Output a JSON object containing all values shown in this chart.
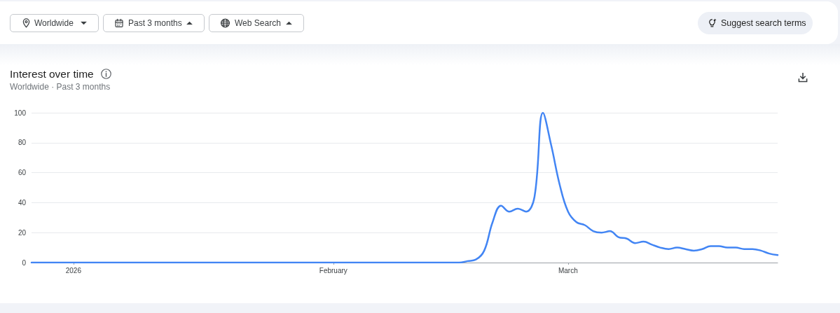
{
  "chart_data": {
    "type": "line",
    "title": "Interest over time",
    "subtitle": "Worldwide · Past 3 months",
    "annotations": [
      "Worldwide",
      "Past 3 months",
      "Web Search",
      "Suggest search terms"
    ],
    "x": [
      "2025-12-27",
      "2025-12-28",
      "2025-12-29",
      "2025-12-30",
      "2025-12-31",
      "2026-01-01",
      "2026-01-02",
      "2026-01-03",
      "2026-01-04",
      "2026-01-05",
      "2026-01-06",
      "2026-01-07",
      "2026-01-08",
      "2026-01-09",
      "2026-01-10",
      "2026-01-11",
      "2026-01-12",
      "2026-01-13",
      "2026-01-14",
      "2026-01-15",
      "2026-01-16",
      "2026-01-17",
      "2026-01-18",
      "2026-01-19",
      "2026-01-20",
      "2026-01-21",
      "2026-01-22",
      "2026-01-23",
      "2026-01-24",
      "2026-01-25",
      "2026-01-26",
      "2026-01-27",
      "2026-01-28",
      "2026-01-29",
      "2026-01-30",
      "2026-01-31",
      "2026-02-01",
      "2026-02-02",
      "2026-02-03",
      "2026-02-04",
      "2026-02-05",
      "2026-02-06",
      "2026-02-07",
      "2026-02-08",
      "2026-02-09",
      "2026-02-10",
      "2026-02-11",
      "2026-02-12",
      "2026-02-13",
      "2026-02-14",
      "2026-02-15",
      "2026-02-16",
      "2026-02-17",
      "2026-02-18",
      "2026-02-19",
      "2026-02-20",
      "2026-02-21",
      "2026-02-22",
      "2026-02-23",
      "2026-02-24",
      "2026-02-25",
      "2026-02-26",
      "2026-02-27",
      "2026-02-28",
      "2026-03-01",
      "2026-03-02",
      "2026-03-03",
      "2026-03-04",
      "2026-03-05",
      "2026-03-06",
      "2026-03-07",
      "2026-03-08",
      "2026-03-09",
      "2026-03-10",
      "2026-03-11",
      "2026-03-12",
      "2026-03-13",
      "2026-03-14",
      "2026-03-15",
      "2026-03-16",
      "2026-03-17",
      "2026-03-18",
      "2026-03-19",
      "2026-03-20",
      "2026-03-21",
      "2026-03-22",
      "2026-03-23",
      "2026-03-24",
      "2026-03-25",
      "2026-03-26"
    ],
    "series": [
      {
        "color": "#4285f4",
        "values": [
          0,
          0,
          0,
          0,
          0,
          0,
          0,
          0,
          0,
          0,
          0,
          0,
          0,
          0,
          0,
          0,
          0,
          0,
          0,
          0,
          0,
          0,
          0,
          0,
          0,
          0,
          0,
          0,
          0,
          0,
          0,
          0,
          0,
          0,
          0,
          0,
          0,
          0,
          0,
          0,
          0,
          0,
          0,
          0,
          0,
          0,
          0,
          0,
          0,
          0,
          0,
          0,
          1,
          2,
          8,
          27,
          38,
          34,
          36,
          34,
          44,
          100,
          78,
          52,
          34,
          27,
          25,
          21,
          20,
          21,
          17,
          16,
          13,
          14,
          12,
          10,
          9,
          10,
          9,
          8,
          9,
          11,
          11,
          10,
          10,
          9,
          9,
          8,
          6,
          5
        ]
      }
    ],
    "xlim": [
      "2025-12-27",
      "2026-03-26"
    ],
    "xticks": [
      {
        "value": "2026-01-01",
        "label": "2026"
      },
      {
        "value": "2026-02-01",
        "label": "February"
      },
      {
        "value": "2026-03-01",
        "label": "March"
      }
    ],
    "ylim": [
      0,
      100
    ],
    "yticks": [
      0,
      20,
      40,
      60,
      80,
      100
    ],
    "grid": "y",
    "marker": "none"
  }
}
